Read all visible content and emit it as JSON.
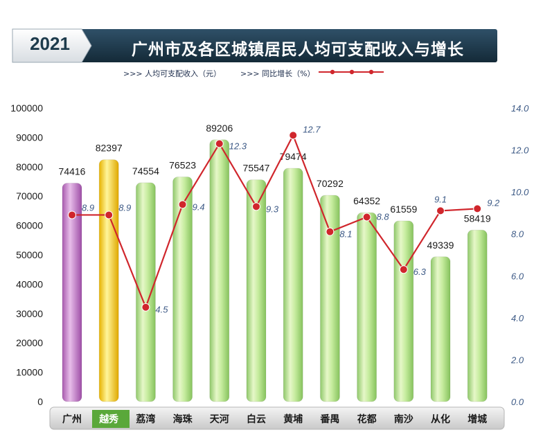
{
  "header": {
    "year": "2021",
    "title": "广州市及各区城镇居民人均可支配收入与增长"
  },
  "legend": {
    "income_label": ">>> 人均可支配收入（元）",
    "growth_label": ">>> 同比增长（%）"
  },
  "colors": {
    "header_band": "#1f3a4d",
    "bar_default": "#a8dc7a",
    "bar_guangzhou": "#c07cc4",
    "bar_yuexiu": "#f5d21a",
    "line": "#d0262c",
    "left_axis_text": "#1a1a1a",
    "right_axis_text": "#3d5a86"
  },
  "chart_data": {
    "type": "bar",
    "categories": [
      "广州",
      "越秀",
      "荔湾",
      "海珠",
      "天河",
      "白云",
      "黄埔",
      "番禺",
      "花都",
      "南沙",
      "从化",
      "增城"
    ],
    "series": [
      {
        "name": "人均可支配收入（元）",
        "type": "bar",
        "axis": "left",
        "values": [
          74416,
          82397,
          74554,
          76523,
          89206,
          75547,
          79474,
          70292,
          64352,
          61559,
          49339,
          58419
        ]
      },
      {
        "name": "同比增长（%）",
        "type": "line",
        "axis": "right",
        "values": [
          8.9,
          8.9,
          4.5,
          9.4,
          12.3,
          9.3,
          12.7,
          8.1,
          8.8,
          6.3,
          9.1,
          9.2
        ]
      }
    ],
    "y_left": {
      "range": [
        0,
        100000
      ],
      "ticks": [
        "0",
        "10000",
        "20000",
        "30000",
        "40000",
        "50000",
        "60000",
        "70000",
        "80000",
        "90000",
        "100000"
      ]
    },
    "y_right": {
      "range": [
        0,
        14
      ],
      "ticks": [
        "0.0",
        "2.0",
        "4.0",
        "6.0",
        "8.0",
        "10.0",
        "12.0",
        "14.0"
      ]
    },
    "legend_position": "top",
    "grid": false
  }
}
